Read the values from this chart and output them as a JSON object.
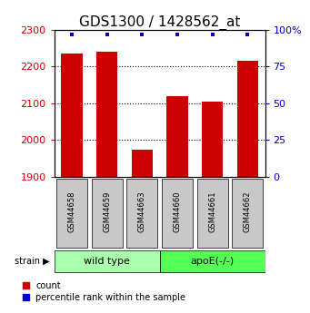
{
  "title": "GDS1300 / 1428562_at",
  "categories": [
    "GSM44658",
    "GSM44659",
    "GSM44663",
    "GSM44660",
    "GSM44661",
    "GSM44662"
  ],
  "bar_values": [
    2235,
    2240,
    1975,
    2120,
    2105,
    2215
  ],
  "percentile_values": [
    97,
    97,
    97,
    97,
    97,
    97
  ],
  "bar_color": "#cc0000",
  "dot_color": "#0000cc",
  "ylim_left": [
    1900,
    2300
  ],
  "ylim_right": [
    0,
    100
  ],
  "yticks_left": [
    1900,
    2000,
    2100,
    2200,
    2300
  ],
  "yticks_right": [
    0,
    25,
    50,
    75,
    100
  ],
  "ytick_labels_right": [
    "0",
    "25",
    "50",
    "75",
    "100%"
  ],
  "grid_lines": [
    2000,
    2100,
    2200
  ],
  "groups": [
    {
      "label": "wild type",
      "indices": [
        0,
        1,
        2
      ],
      "color": "#aaffaa"
    },
    {
      "label": "apoE(-/-)",
      "indices": [
        3,
        4,
        5
      ],
      "color": "#55ff55"
    }
  ],
  "legend_count_label": "count",
  "legend_pct_label": "percentile rank within the sample",
  "strain_label": "strain",
  "left_color": "#cc0000",
  "right_color": "#0000cc",
  "title_fontsize": 11,
  "tick_fontsize": 8,
  "bar_width": 0.6,
  "box_color": "#c8c8c8"
}
